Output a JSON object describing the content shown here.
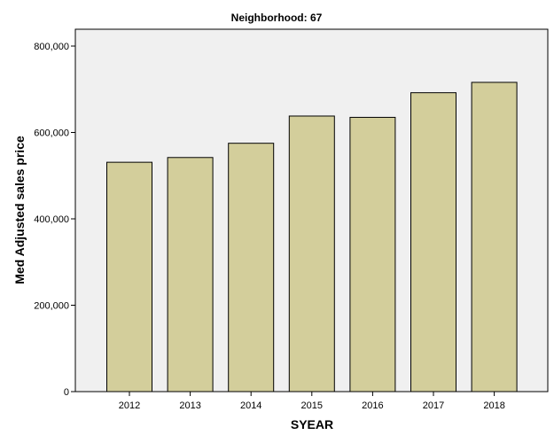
{
  "chart_data": {
    "type": "bar",
    "title": "Neighborhood: 67",
    "xlabel": "SYEAR",
    "ylabel": "Med Adjusted sales price",
    "categories": [
      "2012",
      "2013",
      "2014",
      "2015",
      "2016",
      "2017",
      "2018"
    ],
    "values": [
      531000,
      542000,
      575000,
      638000,
      635000,
      692000,
      716000
    ],
    "ylim": [
      0,
      800000
    ],
    "yticks": [
      0,
      200000,
      400000,
      600000,
      800000
    ],
    "ytick_labels": [
      "0",
      "200,000",
      "400,000",
      "600,000",
      "800,000"
    ],
    "grid": false,
    "colors": {
      "plot_background": "#f0f0f0",
      "bar_fill": "#d3ce9b",
      "bar_stroke": "#000000"
    }
  }
}
